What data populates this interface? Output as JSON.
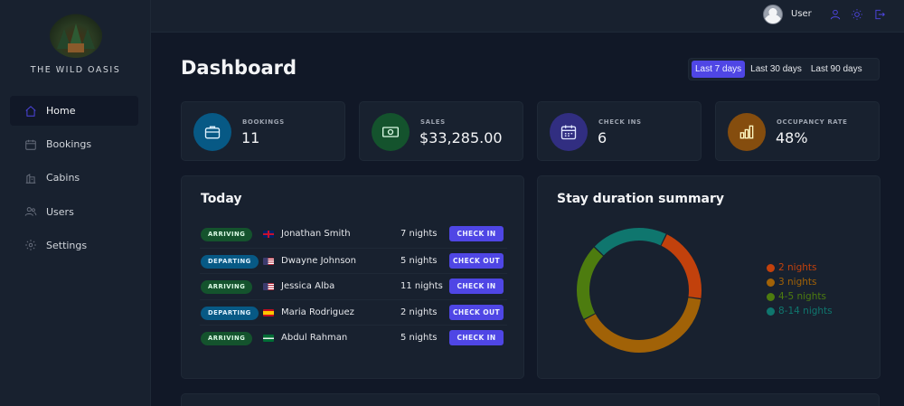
{
  "sidebar": {
    "logo_text": "THE WILD OASIS",
    "items": [
      {
        "label": "Home",
        "icon": "home-icon",
        "active": true
      },
      {
        "label": "Bookings",
        "icon": "calendar-icon",
        "active": false
      },
      {
        "label": "Cabins",
        "icon": "cabin-icon",
        "active": false
      },
      {
        "label": "Users",
        "icon": "users-icon",
        "active": false
      },
      {
        "label": "Settings",
        "icon": "gear-icon",
        "active": false
      }
    ]
  },
  "header": {
    "user_name": "User",
    "icons": [
      "user-icon",
      "sun-icon",
      "logout-icon"
    ]
  },
  "main": {
    "title": "Dashboard",
    "filters": [
      {
        "label": "Last 7 days",
        "active": true
      },
      {
        "label": "Last 30 days",
        "active": false
      },
      {
        "label": "Last 90 days",
        "active": false
      }
    ],
    "stats": [
      {
        "label": "BOOKINGS",
        "value": "11",
        "icon": "briefcase-icon",
        "bg": "#075985",
        "fg": "#e0f2fe"
      },
      {
        "label": "SALES",
        "value": "$33,285.00",
        "icon": "banknotes-icon",
        "bg": "#14532d",
        "fg": "#dcfce7"
      },
      {
        "label": "CHECK INS",
        "value": "6",
        "icon": "calendar-days-icon",
        "bg": "#312e81",
        "fg": "#e0e7ff"
      },
      {
        "label": "OCCUPANCY RATE",
        "value": "48%",
        "icon": "chart-bar-icon",
        "bg": "#854d0e",
        "fg": "#fef9c3"
      }
    ],
    "today": {
      "title": "Today",
      "rows": [
        {
          "status": "ARRIVING",
          "flag": "gb",
          "guest": "Jonathan Smith",
          "nights": "7 nights",
          "action": "CHECK IN"
        },
        {
          "status": "DEPARTING",
          "flag": "us",
          "guest": "Dwayne Johnson",
          "nights": "5 nights",
          "action": "CHECK OUT"
        },
        {
          "status": "ARRIVING",
          "flag": "us",
          "guest": "Jessica Alba",
          "nights": "11 nights",
          "action": "CHECK IN"
        },
        {
          "status": "DEPARTING",
          "flag": "es",
          "guest": "Maria Rodriguez",
          "nights": "2 nights",
          "action": "CHECK OUT"
        },
        {
          "status": "ARRIVING",
          "flag": "sa",
          "guest": "Abdul Rahman",
          "nights": "5 nights",
          "action": "CHECK IN"
        }
      ]
    },
    "duration": {
      "title": "Stay duration summary"
    }
  },
  "chart_data": {
    "type": "pie",
    "title": "Stay duration summary",
    "categories": [
      "2 nights",
      "3 nights",
      "4-5 nights",
      "8-14 nights"
    ],
    "values": [
      1,
      2,
      1,
      1
    ],
    "colors": [
      "#c2410c",
      "#a16207",
      "#4d7c0f",
      "#0f766e"
    ],
    "legend": "right"
  }
}
